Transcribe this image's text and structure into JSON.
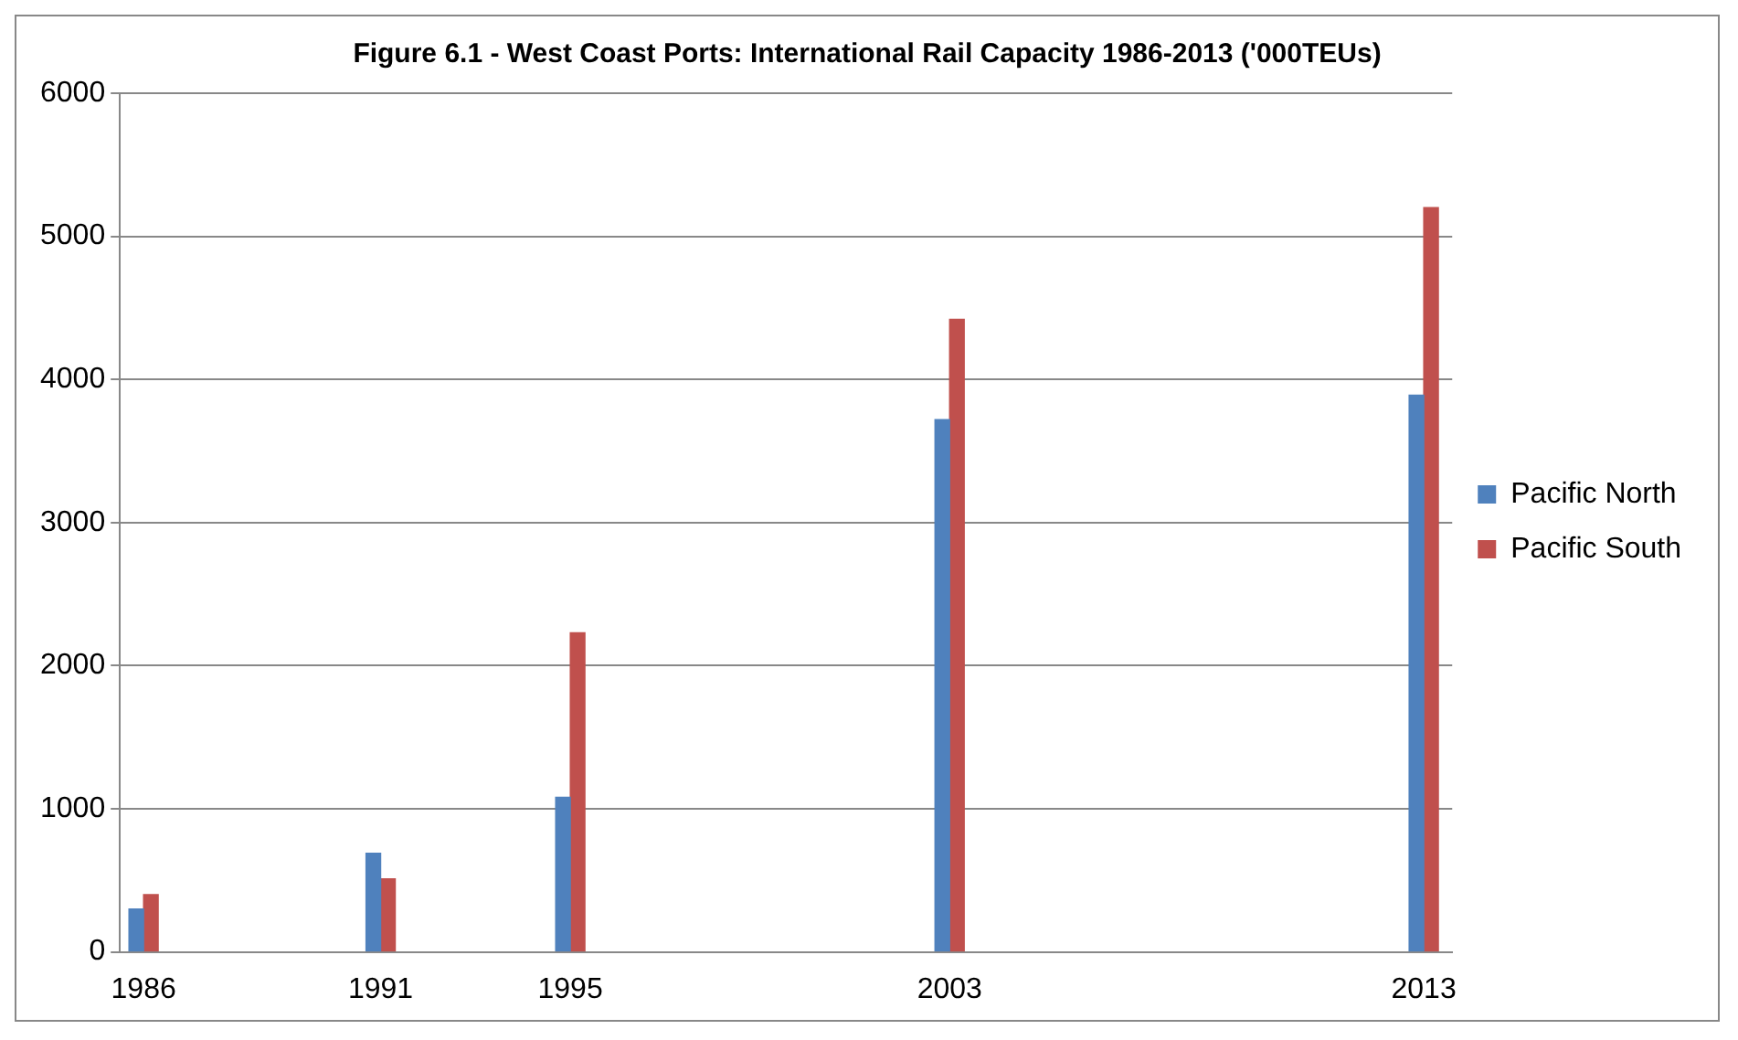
{
  "chart_data": {
    "type": "bar",
    "title": "Figure 6.1 - West Coast Ports: International Rail Capacity 1986-2013 ('000TEUs)",
    "x": [
      1986,
      1991,
      1995,
      2003,
      2013
    ],
    "series": [
      {
        "name": "Pacific North",
        "color": "#4f81bd",
        "values": [
          300,
          690,
          1080,
          3720,
          3890
        ]
      },
      {
        "name": "Pacific South",
        "color": "#c0504d",
        "values": [
          400,
          510,
          2230,
          4420,
          5200
        ]
      }
    ],
    "xlim": [
      1985.5,
      2013.6
    ],
    "xticks": [
      1986,
      1991,
      1995,
      2003,
      2013
    ],
    "ylim": [
      0,
      6000
    ],
    "yticks": [
      0,
      1000,
      2000,
      3000,
      4000,
      5000,
      6000
    ],
    "grid": "y",
    "legend": "right"
  }
}
